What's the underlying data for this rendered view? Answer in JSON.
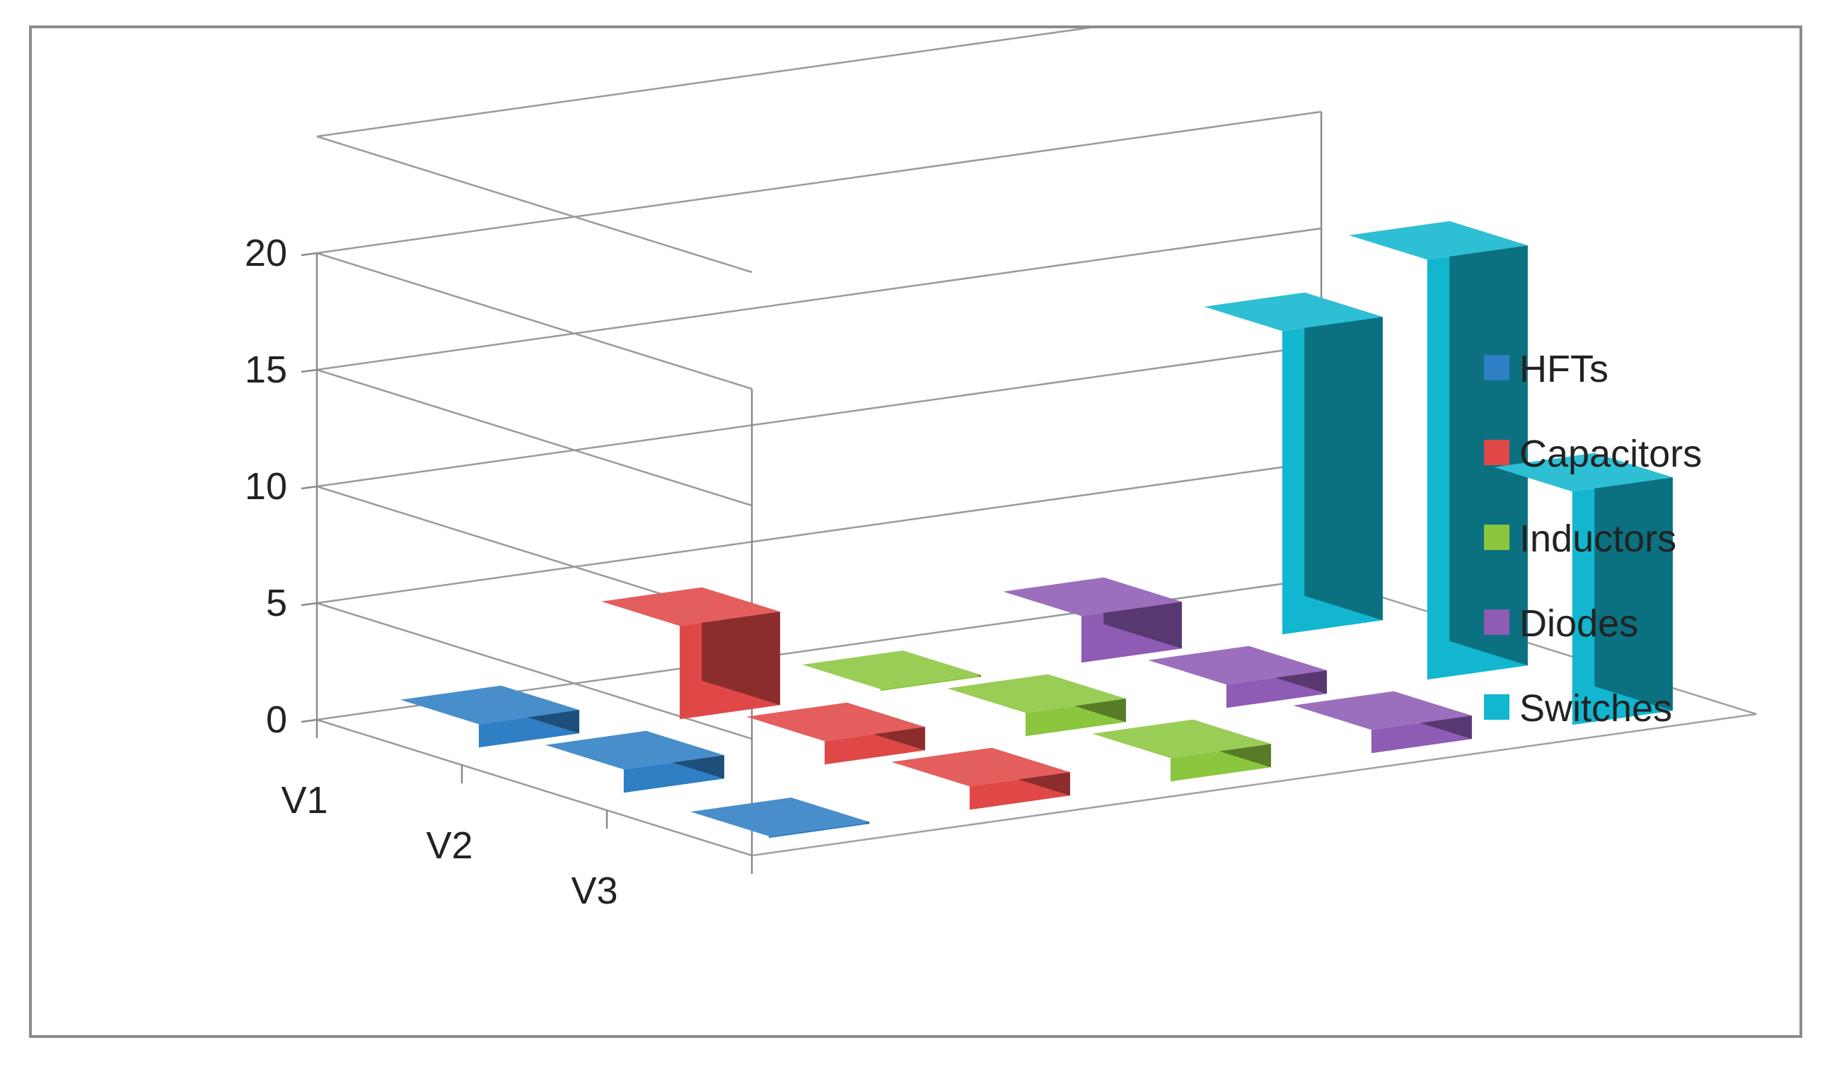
{
  "chart_data": {
    "type": "bar",
    "subtype": "3d-column",
    "categories": [
      "V1",
      "V2",
      "V3"
    ],
    "series": [
      {
        "name": "HFTs",
        "values": [
          1,
          1,
          0
        ],
        "color": "#2f7fc4"
      },
      {
        "name": "Capacitors",
        "values": [
          4,
          1,
          1
        ],
        "color": "#e04848"
      },
      {
        "name": "Inductors",
        "values": [
          0,
          1,
          1
        ],
        "color": "#8cc63f"
      },
      {
        "name": "Diodes",
        "values": [
          2,
          1,
          1
        ],
        "color": "#8e5bb5"
      },
      {
        "name": "Switches",
        "values": [
          13,
          18,
          10
        ],
        "color": "#12b6cf"
      }
    ],
    "yticks": [
      0,
      5,
      10,
      15,
      20
    ],
    "ylim": [
      0,
      25
    ],
    "title": "",
    "xlabel": "",
    "ylabel": "",
    "grid": true,
    "legend_position": "right"
  }
}
